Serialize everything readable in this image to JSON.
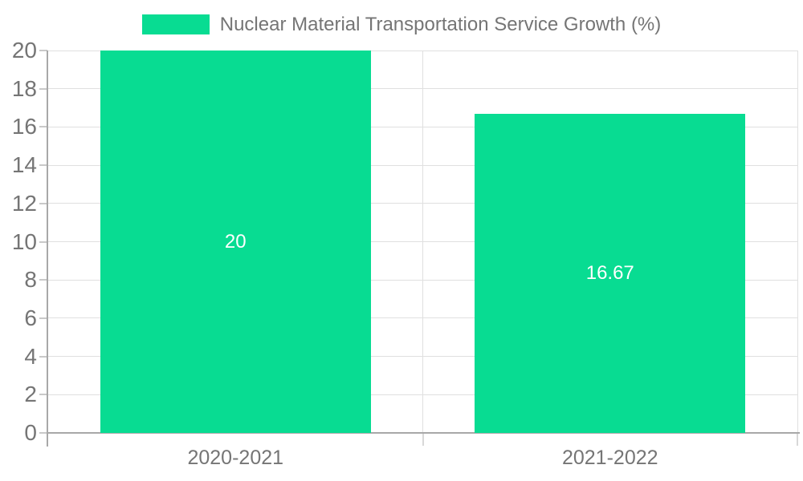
{
  "chart_data": {
    "type": "bar",
    "title": "Nuclear Material Transportation Service Growth (%)",
    "legend": {
      "label": "Nuclear Material Transportation Service Growth (%)",
      "position": "top"
    },
    "categories": [
      "2020-2021",
      "2021-2022"
    ],
    "series": [
      {
        "name": "Nuclear Material Transportation Service Growth (%)",
        "values": [
          20,
          16.67
        ]
      }
    ],
    "bar_value_labels": [
      "20",
      "16.67"
    ],
    "xlabel": "",
    "ylabel": "",
    "ylim": [
      0,
      20
    ],
    "ytick_interval": 2,
    "yticks": [
      0,
      2,
      4,
      6,
      8,
      10,
      12,
      14,
      16,
      18,
      20
    ],
    "grid": true,
    "colors": {
      "bar": "#08DC92",
      "gridline": "#e0e0e0",
      "axis_line": "#a8a8a8",
      "tick": "#c9c9c9",
      "xtick": "#d8d8d8",
      "text": "#757575",
      "value_label": "#ffffff",
      "background": "#ffffff"
    }
  }
}
